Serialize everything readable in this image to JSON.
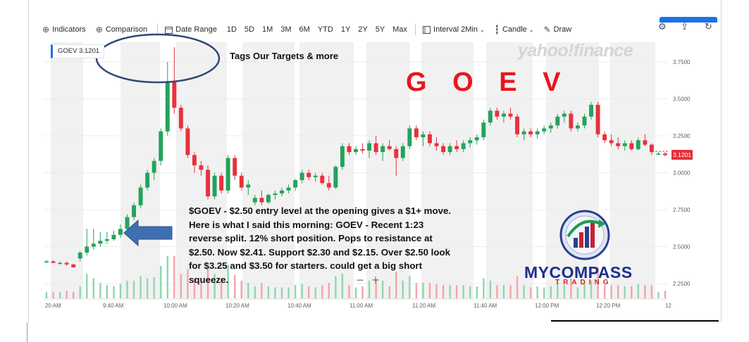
{
  "toolbar": {
    "indicators": "Indicators",
    "comparison": "Comparison",
    "date_range": "Date Range",
    "ranges": [
      "1D",
      "5D",
      "1M",
      "3M",
      "6M",
      "YTD",
      "1Y",
      "2Y",
      "5Y",
      "Max"
    ],
    "interval": "Interval",
    "interval_value": "2Min",
    "chart_style": "Candle",
    "draw": "Draw"
  },
  "ticker_tag": "GOEV 3.1201",
  "watermark": "yahoo!finance",
  "title": "G O E V",
  "targets_note": "Tags Our Targets & more",
  "annotation": "$GOEV - $2.50 entry level at the opening gives a $1+ move.  Here is what I said this morning: GOEV - Recent 1:23 reverse split.  12% short position. Pops to resistance at $2.50.  Now $2.41.  Support $2.30 and $2.15.  Over $2.50 look for $3.25 and $3.50 for starters.  could get a big short squeeze.",
  "zoom": {
    "minus": "−",
    "plus": "+"
  },
  "logo": {
    "name": "MYCOMPASS",
    "sub": "TRADING"
  },
  "colors": {
    "up": "#23a35b",
    "down": "#e7323c",
    "title": "#e8171c",
    "shade": "#f1f1f1",
    "arrow": "#3f6fb3"
  },
  "icons": [
    "indicators-icon",
    "comparison-icon",
    "calendar-icon",
    "interval-icon",
    "candle-icon",
    "draw-icon",
    "settings-icon",
    "share-icon",
    "refresh-icon",
    "left-arrow-icon",
    "compass-logo-icon"
  ],
  "chart_data": {
    "type": "candlestick",
    "symbol": "GOEV",
    "last_price": "3.1201",
    "y_ticks": [
      "3.7500",
      "3.5000",
      "3.2500",
      "3.0000",
      "2.7500",
      "2.5000",
      "2.2500"
    ],
    "y_tick_values": [
      3.75,
      3.5,
      3.25,
      3.0,
      2.75,
      2.5,
      2.25
    ],
    "x_ticks": [
      "20 AM",
      "9:40 AM",
      "10:00 AM",
      "10:20 AM",
      "10:40 AM",
      "11:00 AM",
      "11:20 AM",
      "11:40 AM",
      "12:00 PM",
      "12:20 PM",
      "12"
    ],
    "ylim": [
      2.2,
      3.85
    ],
    "candles": [
      [
        2.4,
        2.41,
        2.39,
        2.4
      ],
      [
        2.4,
        2.41,
        2.39,
        2.39
      ],
      [
        2.39,
        2.4,
        2.38,
        2.39
      ],
      [
        2.39,
        2.4,
        2.37,
        2.38
      ],
      [
        2.38,
        2.38,
        2.36,
        2.36
      ],
      [
        2.42,
        2.47,
        2.4,
        2.46
      ],
      [
        2.46,
        2.62,
        2.44,
        2.5
      ],
      [
        2.5,
        2.62,
        2.48,
        2.52
      ],
      [
        2.52,
        2.6,
        2.5,
        2.54
      ],
      [
        2.54,
        2.6,
        2.52,
        2.55
      ],
      [
        2.55,
        2.61,
        2.54,
        2.58
      ],
      [
        2.58,
        2.65,
        2.56,
        2.62
      ],
      [
        2.62,
        2.72,
        2.6,
        2.7
      ],
      [
        2.7,
        2.8,
        2.68,
        2.78
      ],
      [
        2.78,
        2.92,
        2.76,
        2.9
      ],
      [
        2.9,
        3.02,
        2.88,
        3.0
      ],
      [
        3.0,
        3.1,
        2.95,
        3.08
      ],
      [
        3.08,
        3.3,
        3.05,
        3.28
      ],
      [
        3.28,
        3.75,
        3.25,
        3.62
      ],
      [
        3.62,
        3.85,
        3.4,
        3.44
      ],
      [
        3.44,
        3.46,
        3.28,
        3.3
      ],
      [
        3.3,
        3.32,
        3.1,
        3.12
      ],
      [
        3.12,
        3.14,
        3.0,
        3.05
      ],
      [
        3.05,
        3.08,
        2.98,
        3.02
      ],
      [
        3.02,
        3.05,
        2.82,
        2.84
      ],
      [
        2.84,
        3.0,
        2.82,
        2.98
      ],
      [
        2.98,
        3.0,
        2.86,
        2.88
      ],
      [
        2.88,
        3.12,
        2.86,
        3.1
      ],
      [
        3.1,
        3.12,
        2.95,
        2.98
      ],
      [
        2.98,
        3.0,
        2.88,
        2.9
      ],
      [
        2.9,
        2.95,
        2.85,
        2.92
      ],
      [
        2.8,
        2.85,
        2.78,
        2.83
      ],
      [
        2.83,
        2.88,
        2.78,
        2.8
      ],
      [
        2.8,
        2.86,
        2.79,
        2.85
      ],
      [
        2.85,
        2.88,
        2.82,
        2.86
      ],
      [
        2.86,
        2.9,
        2.84,
        2.88
      ],
      [
        2.88,
        2.92,
        2.86,
        2.9
      ],
      [
        2.9,
        2.96,
        2.88,
        2.95
      ],
      [
        2.95,
        3.02,
        2.93,
        3.0
      ],
      [
        3.0,
        3.02,
        2.95,
        2.97
      ],
      [
        2.97,
        3.0,
        2.94,
        2.98
      ],
      [
        2.98,
        3.0,
        2.92,
        2.93
      ],
      [
        2.93,
        2.98,
        2.88,
        2.9
      ],
      [
        2.9,
        3.05,
        2.89,
        3.04
      ],
      [
        3.04,
        3.2,
        3.02,
        3.18
      ],
      [
        3.18,
        3.2,
        3.12,
        3.14
      ],
      [
        3.14,
        3.18,
        3.12,
        3.16
      ],
      [
        3.16,
        3.2,
        3.13,
        3.15
      ],
      [
        3.15,
        3.22,
        3.1,
        3.2
      ],
      [
        3.2,
        3.25,
        3.12,
        3.14
      ],
      [
        3.14,
        3.2,
        3.08,
        3.18
      ],
      [
        3.18,
        3.22,
        3.15,
        3.16
      ],
      [
        3.16,
        3.18,
        2.98,
        3.1
      ],
      [
        3.1,
        3.2,
        3.08,
        3.18
      ],
      [
        3.18,
        3.32,
        3.16,
        3.3
      ],
      [
        3.3,
        3.32,
        3.22,
        3.24
      ],
      [
        3.24,
        3.28,
        3.18,
        3.26
      ],
      [
        3.26,
        3.28,
        3.18,
        3.2
      ],
      [
        3.2,
        3.24,
        3.15,
        3.18
      ],
      [
        3.18,
        3.2,
        3.12,
        3.14
      ],
      [
        3.14,
        3.2,
        3.12,
        3.18
      ],
      [
        3.18,
        3.22,
        3.14,
        3.16
      ],
      [
        3.16,
        3.22,
        3.14,
        3.2
      ],
      [
        3.2,
        3.24,
        3.17,
        3.22
      ],
      [
        3.22,
        3.26,
        3.19,
        3.24
      ],
      [
        3.24,
        3.36,
        3.22,
        3.34
      ],
      [
        3.34,
        3.44,
        3.32,
        3.42
      ],
      [
        3.42,
        3.44,
        3.36,
        3.38
      ],
      [
        3.38,
        3.42,
        3.34,
        3.4
      ],
      [
        3.4,
        3.44,
        3.36,
        3.38
      ],
      [
        3.38,
        3.4,
        3.24,
        3.26
      ],
      [
        3.26,
        3.3,
        3.22,
        3.28
      ],
      [
        3.28,
        3.3,
        3.24,
        3.26
      ],
      [
        3.26,
        3.3,
        3.23,
        3.28
      ],
      [
        3.28,
        3.32,
        3.26,
        3.3
      ],
      [
        3.3,
        3.34,
        3.27,
        3.32
      ],
      [
        3.32,
        3.4,
        3.3,
        3.38
      ],
      [
        3.38,
        3.42,
        3.34,
        3.4
      ],
      [
        3.4,
        3.42,
        3.28,
        3.3
      ],
      [
        3.3,
        3.34,
        3.28,
        3.32
      ],
      [
        3.32,
        3.4,
        3.3,
        3.38
      ],
      [
        3.38,
        3.48,
        3.36,
        3.46
      ],
      [
        3.46,
        3.48,
        3.24,
        3.26
      ],
      [
        3.26,
        3.28,
        3.2,
        3.22
      ],
      [
        3.22,
        3.26,
        3.18,
        3.2
      ],
      [
        3.2,
        3.24,
        3.16,
        3.18
      ],
      [
        3.18,
        3.22,
        3.15,
        3.2
      ],
      [
        3.2,
        3.22,
        3.15,
        3.16
      ],
      [
        3.16,
        3.24,
        3.15,
        3.22
      ],
      [
        3.22,
        3.26,
        3.18,
        3.19
      ],
      [
        3.19,
        3.2,
        3.12,
        3.14
      ],
      [
        3.13,
        3.14,
        3.12,
        3.13
      ],
      [
        3.13,
        3.14,
        3.11,
        3.12
      ]
    ]
  }
}
